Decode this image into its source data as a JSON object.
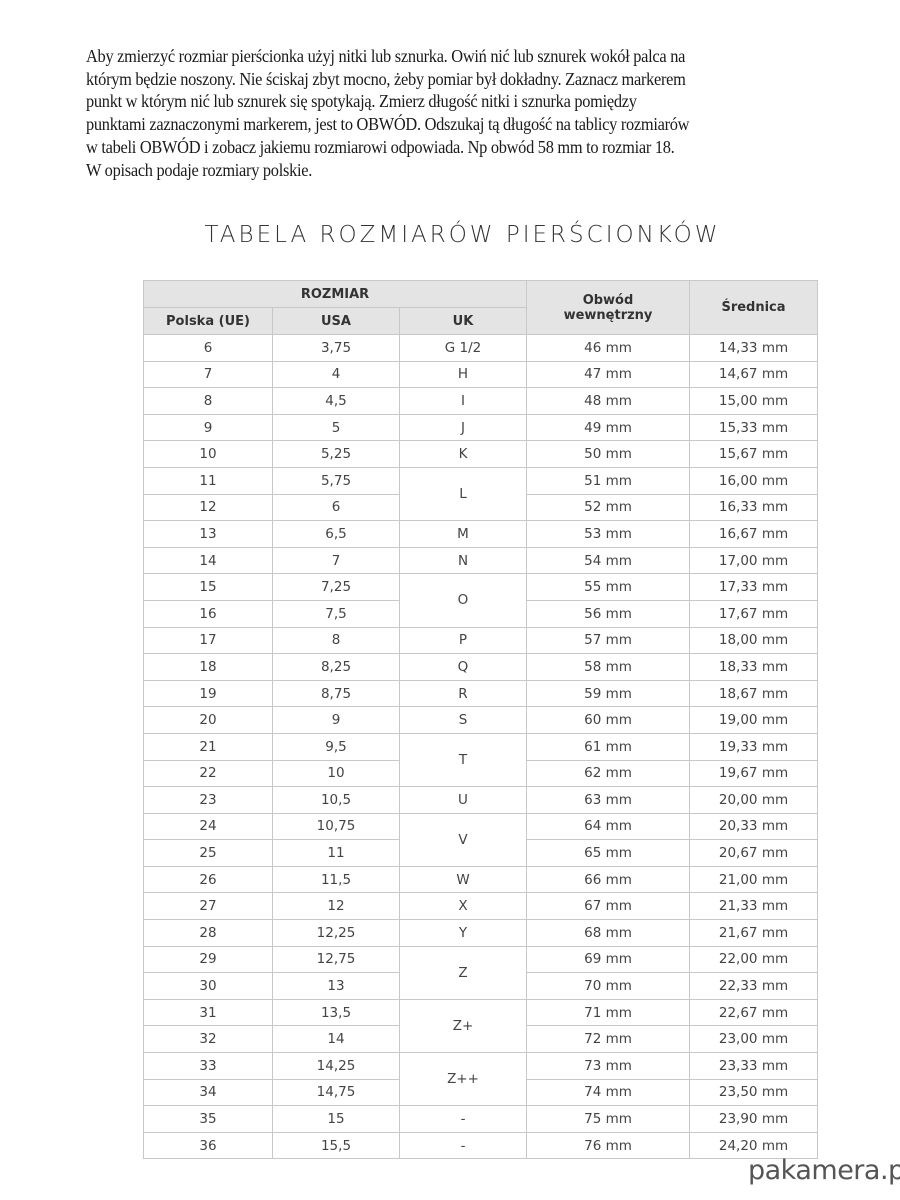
{
  "intro_lines": [
    "Aby zmierzyć rozmiar pierścionka użyj nitki lub sznurka. Owiń nić lub sznurek wokół palca na",
    "którym będzie noszony. Nie ściskaj zbyt mocno, żeby pomiar był dokładny. Zaznacz markerem",
    "punkt w którym nić lub sznurek się spotykają. Zmierz długość nitki i sznurka pomiędzy",
    "punktami zaznaczonymi markerem, jest to OBWÓD. Odszukaj tą długość na tablicy rozmiarów",
    "w tabeli OBWÓD i zobacz jakiemu rozmiarowi odpowiada. Np obwód  58 mm to rozmiar 18.",
    "W opisach podaje rozmiary polskie."
  ],
  "title": "TABELA ROZMIARÓW PIERŚCIONKÓW",
  "table": {
    "header": {
      "rozmiar": "ROZMIAR",
      "polska": "Polska (UE)",
      "usa": "USA",
      "uk": "UK",
      "obwod": "Obwód wewnętrzny",
      "srednica": "Średnica"
    },
    "rows": [
      [
        "6",
        "3,75",
        "G 1/2",
        "46 mm",
        "14,33 mm",
        1
      ],
      [
        "7",
        "4",
        "H",
        "47 mm",
        "14,67 mm",
        1
      ],
      [
        "8",
        "4,5",
        "I",
        "48 mm",
        "15,00 mm",
        1
      ],
      [
        "9",
        "5",
        "J",
        "49 mm",
        "15,33 mm",
        1
      ],
      [
        "10",
        "5,25",
        "K",
        "50 mm",
        "15,67 mm",
        1
      ],
      [
        "11",
        "5,75",
        "L",
        "51 mm",
        "16,00 mm",
        2
      ],
      [
        "12",
        "6",
        null,
        "52 mm",
        "16,33 mm",
        0
      ],
      [
        "13",
        "6,5",
        "M",
        "53 mm",
        "16,67 mm",
        1
      ],
      [
        "14",
        "7",
        "N",
        "54 mm",
        "17,00 mm",
        1
      ],
      [
        "15",
        "7,25",
        "O",
        "55 mm",
        "17,33 mm",
        2
      ],
      [
        "16",
        "7,5",
        null,
        "56 mm",
        "17,67 mm",
        0
      ],
      [
        "17",
        "8",
        "P",
        "57 mm",
        "18,00 mm",
        1
      ],
      [
        "18",
        "8,25",
        "Q",
        "58 mm",
        "18,33 mm",
        1
      ],
      [
        "19",
        "8,75",
        "R",
        "59 mm",
        "18,67 mm",
        1
      ],
      [
        "20",
        "9",
        "S",
        "60 mm",
        "19,00 mm",
        1
      ],
      [
        "21",
        "9,5",
        "T",
        "61 mm",
        "19,33 mm",
        2
      ],
      [
        "22",
        "10",
        null,
        "62 mm",
        "19,67 mm",
        0
      ],
      [
        "23",
        "10,5",
        "U",
        "63 mm",
        "20,00 mm",
        1
      ],
      [
        "24",
        "10,75",
        "V",
        "64 mm",
        "20,33 mm",
        2
      ],
      [
        "25",
        "11",
        null,
        "65 mm",
        "20,67 mm",
        0
      ],
      [
        "26",
        "11,5",
        "W",
        "66 mm",
        "21,00 mm",
        1
      ],
      [
        "27",
        "12",
        "X",
        "67 mm",
        "21,33 mm",
        1
      ],
      [
        "28",
        "12,25",
        "Y",
        "68 mm",
        "21,67 mm",
        1
      ],
      [
        "29",
        "12,75",
        "Z",
        "69 mm",
        "22,00 mm",
        2
      ],
      [
        "30",
        "13",
        null,
        "70 mm",
        "22,33 mm",
        0
      ],
      [
        "31",
        "13,5",
        "Z+",
        "71 mm",
        "22,67 mm",
        2
      ],
      [
        "32",
        "14",
        null,
        "72 mm",
        "23,00 mm",
        0
      ],
      [
        "33",
        "14,25",
        "Z++",
        "73 mm",
        "23,33 mm",
        2
      ],
      [
        "34",
        "14,75",
        null,
        "74 mm",
        "23,50 mm",
        0
      ],
      [
        "35",
        "15",
        "-",
        "75 mm",
        "23,90 mm",
        1
      ],
      [
        "36",
        "15,5",
        "-",
        "76 mm",
        "24,20 mm",
        1
      ]
    ]
  },
  "watermark": "pakamera.pl"
}
